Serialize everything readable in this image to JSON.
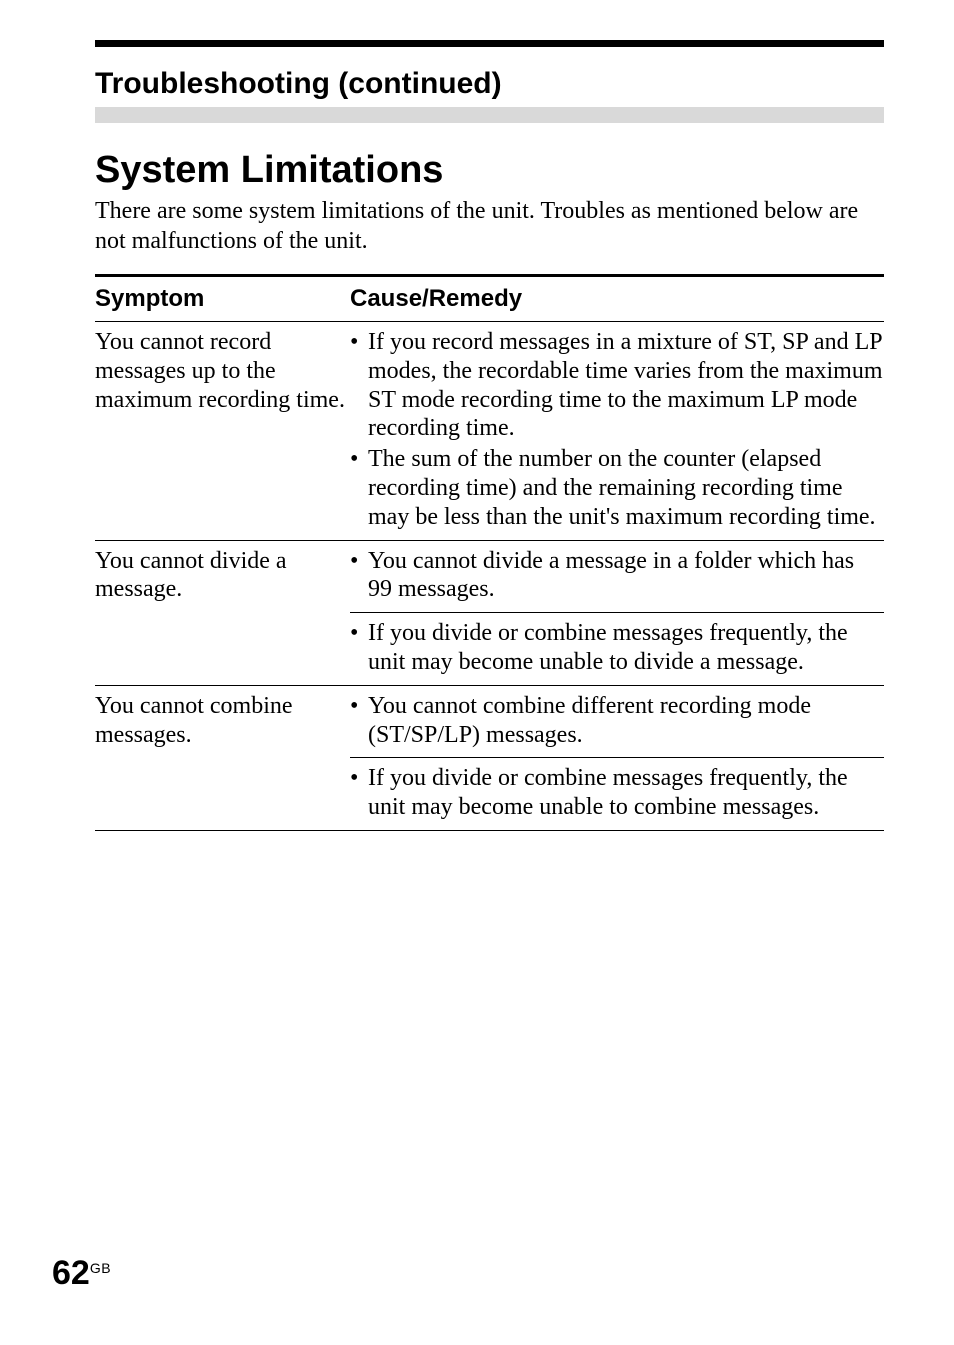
{
  "colors": {
    "top_bar": "#000000",
    "sub_bar": "#d9d9d9",
    "text": "#000000",
    "background": "#ffffff",
    "rule_thick": "#000000",
    "rule_thin": "#000000"
  },
  "typography": {
    "heading_font": "Arial, Helvetica, sans-serif",
    "body_font": "\"Times New Roman\", Times, serif",
    "section_heading_size_pt": 30,
    "main_heading_size_pt": 38,
    "body_size_pt": 24,
    "table_header_size_pt": 24,
    "page_num_size_pt": 34,
    "page_num_suffix_size_pt": 14
  },
  "section_heading": "Troubleshooting (continued)",
  "main_heading": "System Limitations",
  "intro": "There are some system limitations of the unit. Troubles as mentioned below are not malfunctions of the unit.",
  "table": {
    "headers": {
      "symptom": "Symptom",
      "cause": "Cause/Remedy"
    },
    "rows": [
      {
        "symptom": "You cannot record messages up to the maximum recording time.",
        "causes": [
          "If you record messages in a mixture of ST, SP and LP modes, the recordable time varies from the maximum ST mode recording time to the maximum LP mode recording time.",
          "The sum of the number on the counter (elapsed recording time) and the remaining recording time may be less than the unit's maximum recording time."
        ]
      },
      {
        "symptom": "You cannot divide a message.",
        "causes": [
          "You cannot divide a message in a folder which has 99 messages.",
          "If you divide or combine messages frequently, the unit may become unable to divide a message."
        ]
      },
      {
        "symptom": "You cannot combine messages.",
        "causes": [
          "You cannot combine different recording mode (ST/SP/LP) messages.",
          "If you divide or combine messages frequently, the unit may become unable to combine messages."
        ]
      }
    ]
  },
  "page_number": {
    "number": "62",
    "suffix": "GB"
  }
}
